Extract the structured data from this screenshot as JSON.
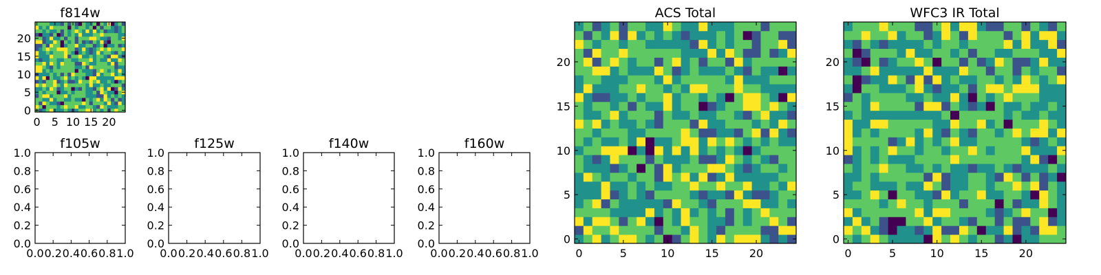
{
  "chart_data": [
    {
      "type": "heatmap",
      "title": "f814w",
      "x_ticks": [
        "0",
        "5",
        "10",
        "15",
        "20"
      ],
      "y_ticks": [
        "0",
        "5",
        "10",
        "15",
        "20"
      ],
      "xlim": [
        -0.5,
        24.5
      ],
      "ylim": [
        -0.5,
        24.5
      ],
      "grid_size": 25,
      "seed": 814
    },
    {
      "type": "empty",
      "title": "f105w",
      "x_ticks": [
        "0.0",
        "0.2",
        "0.4",
        "0.6",
        "0.8",
        "1.0"
      ],
      "y_ticks": [
        "0.0",
        "0.2",
        "0.4",
        "0.6",
        "0.8",
        "1.0"
      ],
      "xlim": [
        0,
        1
      ],
      "ylim": [
        0,
        1
      ]
    },
    {
      "type": "empty",
      "title": "f125w",
      "x_ticks": [
        "0.0",
        "0.2",
        "0.4",
        "0.6",
        "0.8",
        "1.0"
      ],
      "y_ticks": [
        "0.0",
        "0.2",
        "0.4",
        "0.6",
        "0.8",
        "1.0"
      ],
      "xlim": [
        0,
        1
      ],
      "ylim": [
        0,
        1
      ]
    },
    {
      "type": "empty",
      "title": "f140w",
      "x_ticks": [
        "0.0",
        "0.2",
        "0.4",
        "0.6",
        "0.8",
        "1.0"
      ],
      "y_ticks": [
        "0.0",
        "0.2",
        "0.4",
        "0.6",
        "0.8",
        "1.0"
      ],
      "xlim": [
        0,
        1
      ],
      "ylim": [
        0,
        1
      ]
    },
    {
      "type": "empty",
      "title": "f160w",
      "x_ticks": [
        "0.0",
        "0.2",
        "0.4",
        "0.6",
        "0.8",
        "1.0"
      ],
      "y_ticks": [
        "0.0",
        "0.2",
        "0.4",
        "0.6",
        "0.8",
        "1.0"
      ],
      "xlim": [
        0,
        1
      ],
      "ylim": [
        0,
        1
      ]
    },
    {
      "type": "heatmap",
      "title": "ACS Total",
      "x_ticks": [
        "0",
        "5",
        "10",
        "15",
        "20"
      ],
      "y_ticks": [
        "0",
        "5",
        "10",
        "15",
        "20"
      ],
      "xlim": [
        -0.5,
        24.5
      ],
      "ylim": [
        -0.5,
        24.5
      ],
      "grid_size": 25,
      "seed": 2718
    },
    {
      "type": "heatmap",
      "title": "WFC3 IR Total",
      "x_ticks": [
        "0",
        "5",
        "10",
        "15",
        "20"
      ],
      "y_ticks": [
        "0",
        "5",
        "10",
        "15",
        "20"
      ],
      "xlim": [
        -0.5,
        24.5
      ],
      "ylim": [
        -0.5,
        24.5
      ],
      "grid_size": 25,
      "seed": 3141
    }
  ],
  "colormap": "viridis",
  "colors": {
    "dark": "#440154",
    "blue": "#3b528b",
    "teal": "#21918c",
    "green": "#5ec962",
    "yellow": "#fde725"
  }
}
